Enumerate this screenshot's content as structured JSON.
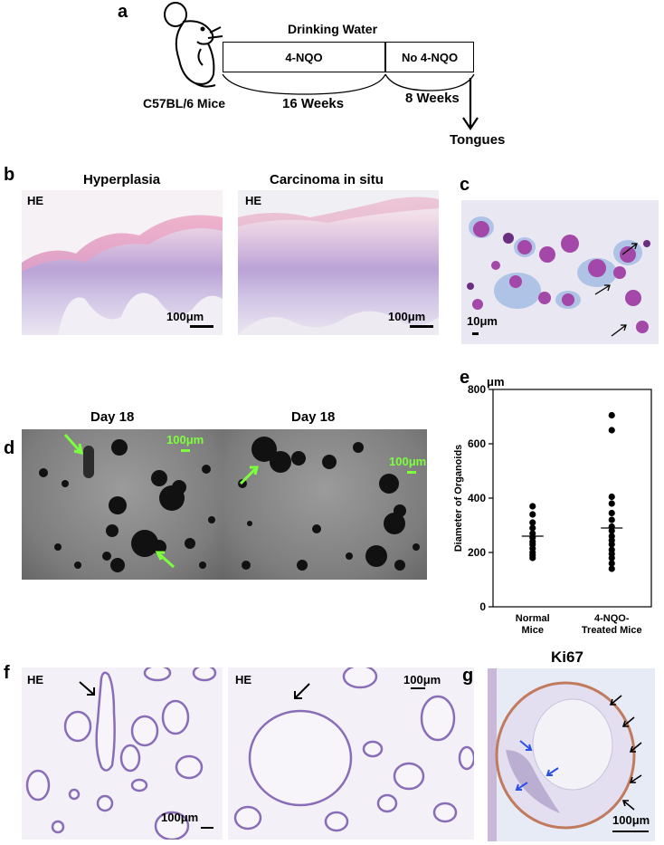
{
  "panel_a": {
    "label": "a",
    "mice": "C57BL/6 Mice",
    "drinking_water": "Drinking Water",
    "treat": "4-NQO",
    "no_treat": "No 4-NQO",
    "weeks1": "16 Weeks",
    "weeks2": "8 Weeks",
    "tongues": "Tongues"
  },
  "panel_b": {
    "label": "b",
    "left_title": "Hyperplasia",
    "right_title": "Carcinoma in situ",
    "stain": "HE",
    "scale": "100μm"
  },
  "panel_c": {
    "label": "c",
    "scale": "10μm"
  },
  "panel_d": {
    "label": "d",
    "left_title": "Day 18",
    "right_title": "Day 18",
    "scale": "100μm"
  },
  "panel_f": {
    "label": "f",
    "stain": "HE",
    "scale": "100μm"
  },
  "panel_g": {
    "label": "g",
    "title": "Ki67",
    "scale": "100μm"
  },
  "chart_data": {
    "type": "scatter",
    "label": "e",
    "unit": "μm",
    "ylabel": "Diameter of Organoids",
    "ylim": [
      0,
      800
    ],
    "yticks": [
      0,
      200,
      400,
      600,
      800
    ],
    "categories": [
      "Normal Mice",
      "4-NQO-Treated Mice"
    ],
    "category_lines": [
      [
        "Normal",
        "Mice"
      ],
      [
        "4-NQO-",
        "Treated Mice"
      ]
    ],
    "series": [
      {
        "values": [
          370,
          340,
          310,
          290,
          270,
          255,
          240,
          230,
          215,
          200,
          190,
          180
        ],
        "median": 260
      },
      {
        "values": [
          705,
          650,
          405,
          380,
          345,
          320,
          295,
          280,
          260,
          245,
          230,
          210,
          195,
          180,
          160,
          140
        ],
        "median": 290
      }
    ],
    "colors": {
      "point": "#000000"
    }
  }
}
